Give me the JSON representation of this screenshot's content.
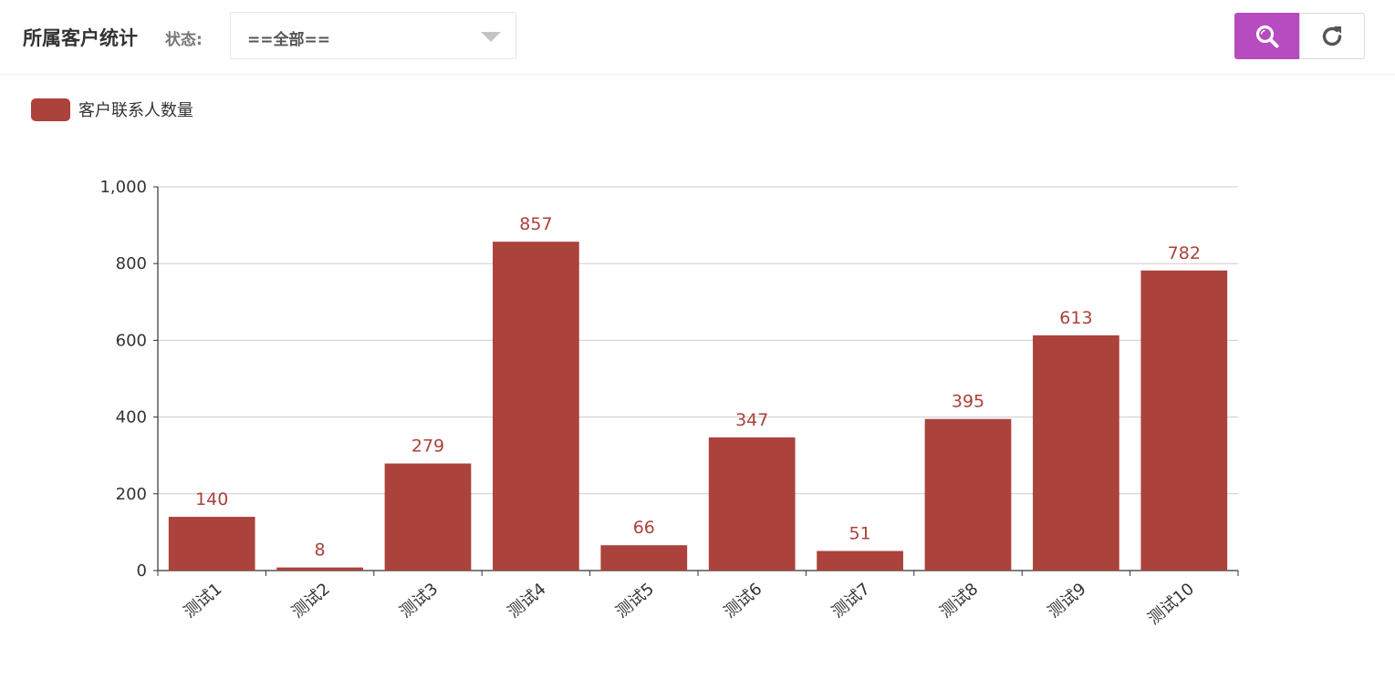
{
  "header": {
    "title": "所属客户统计",
    "status_label": "状态:",
    "status_select": {
      "value": "==全部=="
    },
    "buttons": {
      "search_icon": "search-icon",
      "refresh_icon": "refresh-icon"
    }
  },
  "colors": {
    "accent": "#b64cc0",
    "bar": "#ab423b"
  },
  "legend": {
    "label": "客户联系人数量"
  },
  "chart_data": {
    "type": "bar",
    "categories": [
      "测试1",
      "测试2",
      "测试3",
      "测试4",
      "测试5",
      "测试6",
      "测试7",
      "测试8",
      "测试9",
      "测试10"
    ],
    "series": [
      {
        "name": "客户联系人数量",
        "values": [
          140,
          8,
          279,
          857,
          66,
          347,
          51,
          395,
          613,
          782
        ]
      }
    ],
    "ylim": [
      0,
      1000
    ],
    "yticks": [
      0,
      200,
      400,
      600,
      800,
      1000
    ],
    "ytick_labels": [
      "0",
      "200",
      "400",
      "600",
      "800",
      "1,000"
    ],
    "grid": true,
    "legend_position": "top-left",
    "title": "",
    "xlabel": "",
    "ylabel": ""
  }
}
